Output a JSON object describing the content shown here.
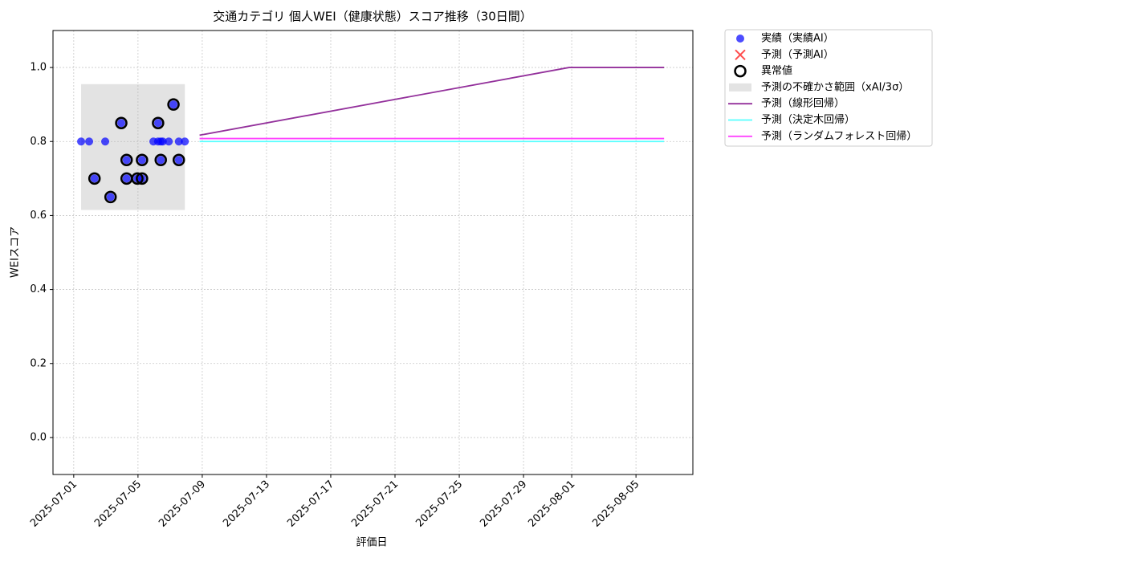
{
  "chart_data": {
    "type": "scatter",
    "title": "交通カテゴリ 個人WEI（健康状態）スコア推移（30日間）",
    "xlabel": "評価日",
    "ylabel": "WEIスコア",
    "xlim": [
      "2025-06-29 17:00",
      "2025-08-08 13:00"
    ],
    "ylim": [
      -0.1,
      1.1
    ],
    "xticks": [
      "2025-07-01",
      "2025-07-05",
      "2025-07-09",
      "2025-07-13",
      "2025-07-17",
      "2025-07-21",
      "2025-07-25",
      "2025-07-29",
      "2025-08-01",
      "2025-08-05"
    ],
    "yticks": [
      {
        "value": 0,
        "label": "0.0"
      },
      {
        "value": 0.2,
        "label": "0.2"
      },
      {
        "value": 0.4,
        "label": "0.4"
      },
      {
        "value": 0.6,
        "label": "0.6"
      },
      {
        "value": 0.8,
        "label": "0.8"
      },
      {
        "value": 1,
        "label": "1.0"
      }
    ],
    "grid": true,
    "legend": "outside-right",
    "series": [
      {
        "name": "実績（実績AI）",
        "type": "scatter",
        "color": "#0000ff",
        "x": [
          "2025-07-01 11:00",
          "2025-07-01 23:00",
          "2025-07-02 07:00",
          "2025-07-02 23:00",
          "2025-07-03 07:00",
          "2025-07-03 23:00",
          "2025-07-04 07:00",
          "2025-07-04 07:00",
          "2025-07-04 23:00",
          "2025-07-05 06:00",
          "2025-07-05 06:00",
          "2025-07-05 23:00",
          "2025-07-06 06:00",
          "2025-07-06 06:00",
          "2025-07-06 10:00",
          "2025-07-06 10:00",
          "2025-07-06 13:00",
          "2025-07-06 22:00",
          "2025-07-07 05:00",
          "2025-07-07 13:00",
          "2025-07-07 13:00",
          "2025-07-07 22:00"
        ],
        "values": [
          0.8,
          0.8,
          0.7,
          0.8,
          0.65,
          0.85,
          0.75,
          0.7,
          0.7,
          0.7,
          0.75,
          0.8,
          0.85,
          0.8,
          0.75,
          0.8,
          0.8,
          0.8,
          0.9,
          0.75,
          0.8,
          0.8
        ]
      },
      {
        "name": "予測（予測AI）",
        "type": "cross",
        "color": "#ff0000",
        "x": [],
        "values": []
      },
      {
        "name": "異常値",
        "type": "ring",
        "color": "#000000",
        "x": [
          "2025-07-02 07:00",
          "2025-07-03 07:00",
          "2025-07-03 23:00",
          "2025-07-04 07:00",
          "2025-07-04 07:00",
          "2025-07-04 23:00",
          "2025-07-05 06:00",
          "2025-07-05 06:00",
          "2025-07-06 06:00",
          "2025-07-06 10:00",
          "2025-07-07 05:00",
          "2025-07-07 13:00"
        ],
        "values": [
          0.7,
          0.65,
          0.85,
          0.75,
          0.7,
          0.7,
          0.7,
          0.75,
          0.85,
          0.75,
          0.9,
          0.75
        ]
      },
      {
        "name": "予測の不確かさ範囲（xAI/3σ）",
        "type": "band",
        "color": "#b0b0b0",
        "x": [
          "2025-07-01 11:00",
          "2025-07-07 22:00"
        ],
        "lower": [
          0.615,
          0.615
        ],
        "upper": [
          0.955,
          0.955
        ]
      },
      {
        "name": "予測（線形回帰）",
        "type": "line",
        "color": "#93309b",
        "x": [
          "2025-07-08 20:00",
          "2025-07-31 20:00",
          "2025-08-06 18:00"
        ],
        "values": [
          0.817,
          1.0,
          1.0
        ]
      },
      {
        "name": "予測（決定木回帰）",
        "type": "line",
        "color": "#55ffff",
        "x": [
          "2025-07-08 20:00",
          "2025-07-31 20:00",
          "2025-08-06 18:00"
        ],
        "values": [
          0.8,
          0.8,
          0.8
        ]
      },
      {
        "name": "予測（ランダムフォレスト回帰）",
        "type": "line",
        "color": "#ff44ff",
        "x": [
          "2025-07-08 20:00",
          "2025-07-31 20:00",
          "2025-08-06 18:00"
        ],
        "values": [
          0.808,
          0.808,
          0.808
        ]
      }
    ]
  }
}
